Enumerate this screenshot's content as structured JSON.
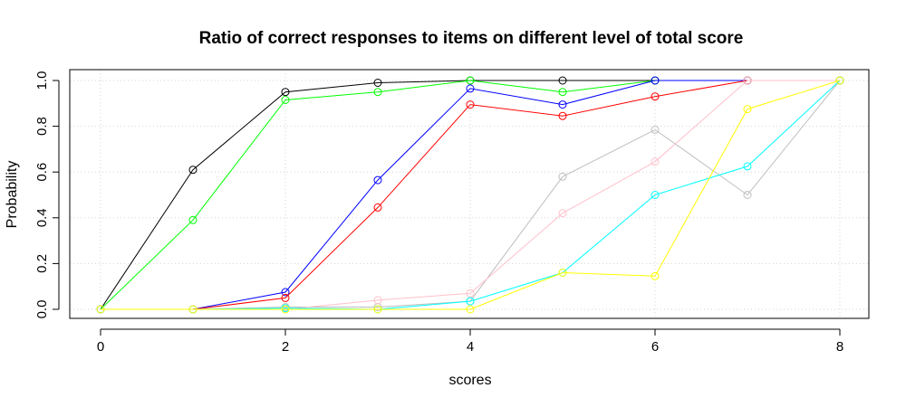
{
  "chart_data": {
    "type": "line",
    "title": "Ratio of correct responses to items on different level of total score",
    "xlabel": "scores",
    "ylabel": "Probability",
    "xlim": [
      0,
      8
    ],
    "ylim": [
      0,
      1
    ],
    "x_ticks": [
      "0",
      "2",
      "4",
      "6",
      "8"
    ],
    "y_ticks": [
      "0.0",
      "0.2",
      "0.4",
      "0.6",
      "0.8",
      "1.0"
    ],
    "grid": true,
    "legend": "none",
    "x": [
      0,
      1,
      2,
      3,
      4,
      5,
      6,
      7,
      8
    ],
    "series": [
      {
        "color": "#000000",
        "values": [
          0.0,
          0.61,
          0.95,
          0.99,
          1.0,
          1.0,
          1.0,
          1.0,
          1.0
        ]
      },
      {
        "color": "#00ff00",
        "values": [
          0.0,
          0.39,
          0.915,
          0.95,
          1.0,
          0.95,
          1.0,
          1.0,
          1.0
        ]
      },
      {
        "color": "#0000ff",
        "values": [
          0.0,
          0.0,
          0.075,
          0.565,
          0.965,
          0.895,
          1.0,
          1.0,
          1.0
        ]
      },
      {
        "color": "#ff0000",
        "values": [
          0.0,
          0.0,
          0.05,
          0.445,
          0.895,
          0.845,
          0.93,
          1.0,
          1.0
        ]
      },
      {
        "color": "#bebebe",
        "values": [
          0.0,
          0.0,
          0.01,
          0.01,
          0.035,
          0.58,
          0.785,
          0.5,
          1.0
        ]
      },
      {
        "color": "#ffc0cb",
        "values": [
          0.0,
          0.0,
          0.0,
          0.04,
          0.07,
          0.42,
          0.645,
          1.0,
          1.0
        ]
      },
      {
        "color": "#00ffff",
        "values": [
          0.0,
          0.0,
          0.005,
          0.0,
          0.035,
          0.16,
          0.5,
          0.625,
          1.0
        ]
      },
      {
        "color": "#ffff00",
        "values": [
          0.0,
          0.0,
          0.0,
          0.0,
          0.0,
          0.16,
          0.145,
          0.875,
          1.0
        ]
      }
    ]
  }
}
